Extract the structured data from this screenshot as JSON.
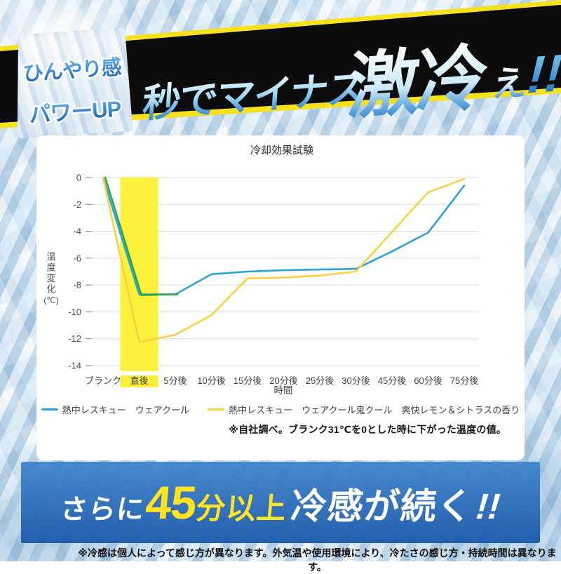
{
  "top_banner": {
    "badge_line1": "ひんやり感",
    "badge_line2": "パワーUP",
    "headline_part1": "秒でマイナス",
    "headline_part2": "激冷",
    "headline_part3": "え",
    "headline_part4": "!!"
  },
  "chart_data": {
    "type": "line",
    "title": "冷却効果試験",
    "xlabel": "時間",
    "ylabel": "温度変化(℃)",
    "ylim": [
      -14,
      0
    ],
    "ytick_step": 2,
    "grid": true,
    "legend_position": "bottom",
    "categories": [
      "ブランク",
      "直後",
      "5分後",
      "10分後",
      "15分後",
      "20分後",
      "25分後",
      "30分後",
      "45分後",
      "60分後",
      "75分後"
    ],
    "highlight_category": "直後",
    "highlight_color": "#fdf13c",
    "series": [
      {
        "name": "熱中レスキュー　ウェアクール",
        "color": "#29a3dc",
        "values": [
          0,
          -8.7,
          -8.7,
          -7.2,
          -7.0,
          -6.9,
          -6.85,
          -6.8,
          -5.5,
          -4.1,
          -0.6
        ]
      },
      {
        "name": "",
        "color": "#2ca53e",
        "values": [
          0,
          -8.75,
          -8.7
        ]
      },
      {
        "name": "熱中レスキュー　ウェアクール鬼クール　爽快レモン＆シトラスの香り",
        "color": "#fcd13f",
        "values": [
          0,
          -12.25,
          -11.7,
          -10.25,
          -7.5,
          -7.45,
          -7.3,
          -7.0,
          -4.05,
          -1.1,
          -0.1
        ]
      }
    ],
    "footnote": "※自社調べ。ブランク31℃を0とした時に下がった温度の値。"
  },
  "bottom_banner": {
    "part1": "さらに",
    "part2": "45",
    "part3": "分以上",
    "part4": "冷感が続く",
    "part5": "!!"
  },
  "disclaimer": "※冷感は個人によって感じ方が異なります。外気温や使用環境により、冷たさの感じ方・持続時間は異なります。"
}
